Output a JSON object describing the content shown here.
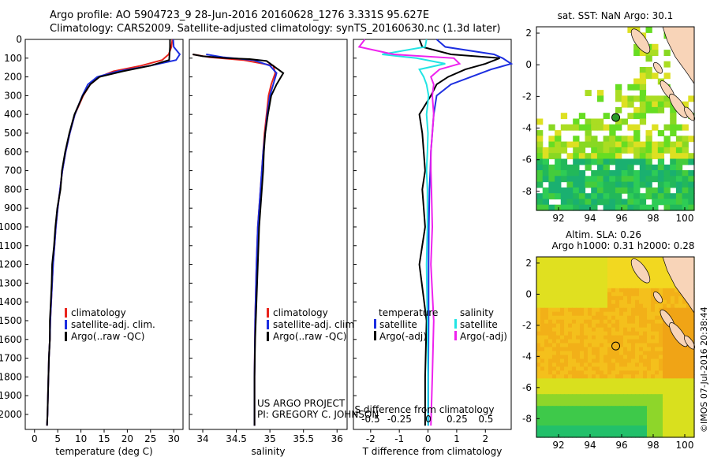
{
  "header": {
    "line1": "Argo profile: AO 5904723_9 28-Jun-2016 20160628_1276 3.331S 95.627E",
    "line2": "Climatology: CARS2009. Satellite-adjusted climatology: synTS_20160630.nc (1.3d later)"
  },
  "credit": {
    "line1": "US ARGO PROJECT",
    "line2": "PI: GREGORY C. JOHNSON"
  },
  "stamp": "©IMOS 07-Jul-2016 20:38:44",
  "colors": {
    "climatology": "#e8241c",
    "satellite": "#1c2ee0",
    "argo": "#000000",
    "satellite_s": "#22e4e4",
    "argo_s": "#ee22ee"
  },
  "chart_data": [
    {
      "type": "line",
      "xlabel": "temperature (deg C)",
      "ylabel": "",
      "xlim": [
        -2,
        32
      ],
      "ylim": [
        2080,
        0
      ],
      "xticks": [
        0,
        5,
        10,
        15,
        20,
        25,
        30
      ],
      "yticks": [
        0,
        100,
        200,
        300,
        400,
        500,
        600,
        700,
        800,
        900,
        1000,
        1100,
        1200,
        1300,
        1400,
        1500,
        1600,
        1700,
        1800,
        1900,
        2000
      ],
      "legend": [
        "climatology",
        "satellite-adj. clim.",
        "Argo(..raw -QC)"
      ],
      "legend_loc": "lower-right",
      "series": [
        {
          "name": "climatology",
          "color": "#e8241c",
          "x": [
            29.7,
            29.5,
            28.9,
            27.5,
            23,
            17,
            14,
            12,
            10.5,
            8.7,
            7.6,
            6.7,
            6,
            5.5,
            5,
            4.6,
            4.3,
            4,
            3.8,
            3.6,
            3.4,
            3.3,
            3.1,
            3,
            2.9,
            2.8,
            2.7
          ],
          "y": [
            0,
            40,
            80,
            110,
            140,
            170,
            200,
            240,
            300,
            400,
            500,
            600,
            700,
            800,
            900,
            1000,
            1100,
            1200,
            1300,
            1400,
            1500,
            1600,
            1700,
            1800,
            1900,
            2000,
            2060
          ]
        },
        {
          "name": "satellite-adj. clim.",
          "color": "#1c2ee0",
          "x": [
            29.9,
            30,
            31.3,
            30.5,
            25,
            18,
            13.5,
            11.5,
            10.3,
            8.7,
            7.6,
            6.7,
            6,
            5.5,
            5,
            4.6,
            4.3,
            4,
            3.8,
            3.6,
            3.4,
            3.3,
            3.1,
            3,
            2.9,
            2.8,
            2.7
          ],
          "y": [
            0,
            40,
            80,
            110,
            140,
            170,
            200,
            240,
            300,
            400,
            500,
            600,
            700,
            800,
            900,
            1000,
            1100,
            1200,
            1300,
            1400,
            1500,
            1600,
            1700,
            1800,
            1900,
            2000,
            2060
          ]
        },
        {
          "name": "Argo(..raw -QC)",
          "color": "#000000",
          "x": [
            29.2,
            29.2,
            29.1,
            29,
            25,
            19,
            14,
            12,
            10.4,
            8.6,
            7.5,
            6.6,
            5.9,
            5.6,
            4.9,
            4.5,
            4.2,
            3.8,
            3.7,
            3.5,
            3.3,
            3.3,
            3.1,
            3,
            2.9,
            2.8,
            2.7
          ],
          "y": [
            0,
            40,
            80,
            110,
            140,
            170,
            200,
            240,
            300,
            400,
            500,
            600,
            700,
            800,
            900,
            1000,
            1100,
            1200,
            1300,
            1400,
            1500,
            1600,
            1700,
            1800,
            1900,
            2000,
            2060
          ]
        }
      ]
    },
    {
      "type": "line",
      "xlabel": "salinity",
      "xlim": [
        33.8,
        36.15
      ],
      "ylim": [
        2080,
        0
      ],
      "xticks": [
        34,
        34.5,
        35,
        35.5,
        36
      ],
      "legend": [
        "climatology",
        "satellite-adj. clim.",
        "Argo(..raw -QC)"
      ],
      "legend_loc": "lower-right",
      "series": [
        {
          "name": "climatology",
          "color": "#e8241c",
          "x": [
            33.85,
            34.1,
            34.6,
            35.05,
            35.08,
            35.02,
            34.98,
            34.95,
            34.92,
            34.9,
            34.88,
            34.86,
            34.84,
            34.82,
            34.8,
            34.78,
            34.77,
            34.77
          ],
          "y": [
            80,
            95,
            110,
            140,
            180,
            240,
            300,
            400,
            500,
            600,
            700,
            800,
            900,
            1000,
            1200,
            1500,
            1800,
            2060
          ]
        },
        {
          "name": "satellite-adj. clim.",
          "color": "#1c2ee0",
          "x": [
            34.05,
            34.3,
            34.75,
            35,
            35.1,
            35.05,
            35,
            34.96,
            34.93,
            34.9,
            34.88,
            34.86,
            34.84,
            34.82,
            34.8,
            34.78,
            34.77,
            34.77
          ],
          "y": [
            80,
            95,
            110,
            140,
            180,
            240,
            300,
            400,
            500,
            600,
            700,
            800,
            900,
            1000,
            1200,
            1500,
            1800,
            2060
          ]
        },
        {
          "name": "Argo(..raw -QC)",
          "color": "#000000",
          "x": [
            33.85,
            34,
            34.35,
            34.7,
            34.95,
            35.2,
            35.1,
            35.02,
            34.97,
            34.93,
            34.91,
            34.9,
            34.88,
            34.86,
            34.84,
            34.82,
            34.8,
            34.78,
            34.77,
            34.77
          ],
          "y": [
            80,
            90,
            100,
            105,
            115,
            180,
            240,
            300,
            400,
            500,
            600,
            700,
            800,
            900,
            1000,
            1200,
            1400,
            1600,
            1800,
            2060
          ]
        }
      ]
    },
    {
      "type": "line",
      "xlabel": "T difference from climatology",
      "xlabel_top": "S difference from climatology",
      "xlim": [
        -2.6,
        2.9
      ],
      "ylim": [
        2080,
        0
      ],
      "xticks": [
        -2,
        -1,
        0,
        1,
        2
      ],
      "xticks_top": [
        -0.5,
        -0.25,
        0,
        0.25,
        0.5
      ],
      "legend": [
        "temperature",
        "satellite",
        "Argo(-adj)",
        "salinity",
        "satellite",
        "Argo(-adj)"
      ],
      "legend_loc": "lower-center",
      "series": [
        {
          "name": "satellite",
          "color": "#1c2ee0",
          "x": [
            0.3,
            0.6,
            2.3,
            2.6,
            2.9,
            2.2,
            1.5,
            0.8,
            0.3,
            0.2,
            0.15,
            0.1,
            0.08,
            0.05,
            0.03,
            0.02,
            0.02,
            0.01,
            0.01
          ],
          "y": [
            0,
            40,
            80,
            100,
            130,
            160,
            200,
            240,
            300,
            400,
            500,
            600,
            700,
            800,
            1000,
            1200,
            1500,
            1800,
            2060
          ]
        },
        {
          "name": "Argo(-adj)",
          "color": "#000000",
          "x": [
            -0.3,
            -0.2,
            0.8,
            2.5,
            2,
            1.3,
            0.7,
            0.3,
            0.1,
            -0.3,
            -0.2,
            -0.15,
            -0.1,
            -0.2,
            -0.1,
            -0.3,
            -0.05,
            -0.1,
            -0.1
          ],
          "y": [
            0,
            40,
            80,
            100,
            130,
            160,
            200,
            240,
            300,
            400,
            500,
            600,
            700,
            800,
            1000,
            1200,
            1500,
            1800,
            2060
          ]
        },
        {
          "name": "satellite",
          "color": "#22e4e4",
          "x": [
            -0.05,
            -0.1,
            -1.6,
            -0.4,
            0.6,
            -0.3,
            -0.15,
            -0.05,
            0.02,
            -0.05,
            0.0,
            -0.02,
            -0.05,
            -0.02,
            -0.02,
            -0.05,
            -0.02,
            0,
            0
          ],
          "y": [
            0,
            40,
            80,
            100,
            130,
            160,
            200,
            240,
            300,
            400,
            500,
            600,
            700,
            800,
            1000,
            1200,
            1500,
            1800,
            2060
          ]
        },
        {
          "name": "Argo(-adj)",
          "color": "#ee22ee",
          "x": [
            -2.2,
            -2.4,
            -1.2,
            0.9,
            1.1,
            0.4,
            0.1,
            0.2,
            0.15,
            0.2,
            0.15,
            0.1,
            0.1,
            0.12,
            0.15,
            0.1,
            0.2,
            0.15,
            0.1
          ],
          "y": [
            0,
            40,
            80,
            100,
            130,
            160,
            200,
            240,
            300,
            400,
            500,
            600,
            700,
            800,
            1000,
            1200,
            1500,
            1800,
            2060
          ]
        }
      ]
    }
  ],
  "maps": [
    {
      "title": "sat. SST: NaN Argo: 30.1",
      "xlim": [
        90.6,
        100.6
      ],
      "ylim": [
        -9.2,
        2.4
      ],
      "xticks": [
        92,
        94,
        96,
        98,
        100
      ],
      "yticks": [
        2,
        0,
        -2,
        -4,
        -6,
        -8
      ],
      "argo_point": [
        95.627,
        -3.331
      ]
    },
    {
      "title1": "Altim. SLA: 0.26",
      "title2": "Argo h1000: 0.31 h2000: 0.28",
      "xlim": [
        90.6,
        100.6
      ],
      "ylim": [
        -9.2,
        2.4
      ],
      "xticks": [
        92,
        94,
        96,
        98,
        100
      ],
      "yticks": [
        2,
        0,
        -2,
        -4,
        -6,
        -8
      ],
      "argo_point": [
        95.627,
        -3.331
      ]
    }
  ]
}
